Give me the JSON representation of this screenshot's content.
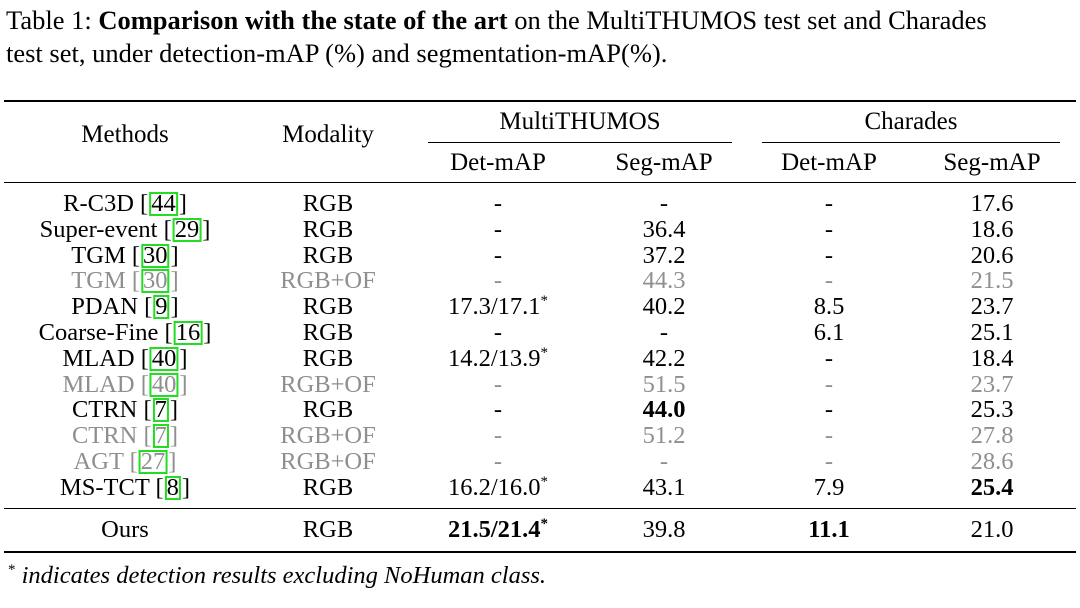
{
  "caption": {
    "prefix": "Table 1: ",
    "bold": "Comparison with the state of the art",
    "line1_rest": " on the MultiTHUMOS test set and Charades",
    "line2": "test set, under detection-mAP (%) and segmentation-mAP(%)."
  },
  "headers": {
    "methods": "Methods",
    "modality": "Modality",
    "group1": "MultiTHUMOS",
    "group2": "Charades",
    "sub": [
      "Det-mAP",
      "Seg-mAP",
      "Det-mAP",
      "Seg-mAP"
    ]
  },
  "rows": [
    {
      "method": "R-C3D",
      "cite": "44",
      "modality": "RGB",
      "gray": false,
      "mt_det": "-",
      "mt_seg": "-",
      "ch_det": "-",
      "ch_seg": "17.6"
    },
    {
      "method": "Super-event",
      "cite": "29",
      "modality": "RGB",
      "gray": false,
      "mt_det": "-",
      "mt_seg": "36.4",
      "ch_det": "-",
      "ch_seg": "18.6"
    },
    {
      "method": "TGM",
      "cite": "30",
      "modality": "RGB",
      "gray": false,
      "mt_det": "-",
      "mt_seg": "37.2",
      "ch_det": "-",
      "ch_seg": "20.6"
    },
    {
      "method": "TGM",
      "cite": "30",
      "modality": "RGB+OF",
      "gray": true,
      "mt_det": "-",
      "mt_seg": "44.3",
      "ch_det": "-",
      "ch_seg": "21.5"
    },
    {
      "method": "PDAN",
      "cite": "9",
      "modality": "RGB",
      "gray": false,
      "mt_det": "17.3/17.1",
      "mt_det_star": true,
      "mt_seg": "40.2",
      "ch_det": "8.5",
      "ch_seg": "23.7"
    },
    {
      "method": "Coarse-Fine",
      "cite": "16",
      "modality": "RGB",
      "gray": false,
      "mt_det": "-",
      "mt_seg": "-",
      "ch_det": "6.1",
      "ch_seg": "25.1"
    },
    {
      "method": "MLAD",
      "cite": "40",
      "modality": "RGB",
      "gray": false,
      "mt_det": "14.2/13.9",
      "mt_det_star": true,
      "mt_seg": "42.2",
      "ch_det": "-",
      "ch_seg": "18.4"
    },
    {
      "method": "MLAD",
      "cite": "40",
      "modality": "RGB+OF",
      "gray": true,
      "mt_det": "-",
      "mt_seg": "51.5",
      "ch_det": "-",
      "ch_seg": "23.7"
    },
    {
      "method": "CTRN",
      "cite": "7",
      "modality": "RGB",
      "gray": false,
      "mt_det": "-",
      "mt_seg": "44.0",
      "mt_seg_bold": true,
      "ch_det": "-",
      "ch_seg": "25.3"
    },
    {
      "method": "CTRN",
      "cite": "7",
      "modality": "RGB+OF",
      "gray": true,
      "mt_det": "-",
      "mt_seg": "51.2",
      "ch_det": "-",
      "ch_seg": "27.8"
    },
    {
      "method": "AGT",
      "cite": "27",
      "modality": "RGB+OF",
      "gray": true,
      "mt_det": "-",
      "mt_seg": "-",
      "ch_det": "-",
      "ch_seg": "28.6"
    },
    {
      "method": "MS-TCT",
      "cite": "8",
      "modality": "RGB",
      "gray": false,
      "mt_det": "16.2/16.0",
      "mt_det_star": true,
      "mt_seg": "43.1",
      "ch_det": "7.9",
      "ch_seg": "25.4",
      "ch_seg_bold": true
    }
  ],
  "ours": {
    "method": "Ours",
    "modality": "RGB",
    "mt_det": "21.5/21.4",
    "mt_det_star": true,
    "mt_det_bold": true,
    "mt_seg": "39.8",
    "ch_det": "11.1",
    "ch_det_bold": true,
    "ch_seg": "21.0"
  },
  "footnote": {
    "star": "*",
    "text": " indicates detection results excluding NoHuman class."
  }
}
